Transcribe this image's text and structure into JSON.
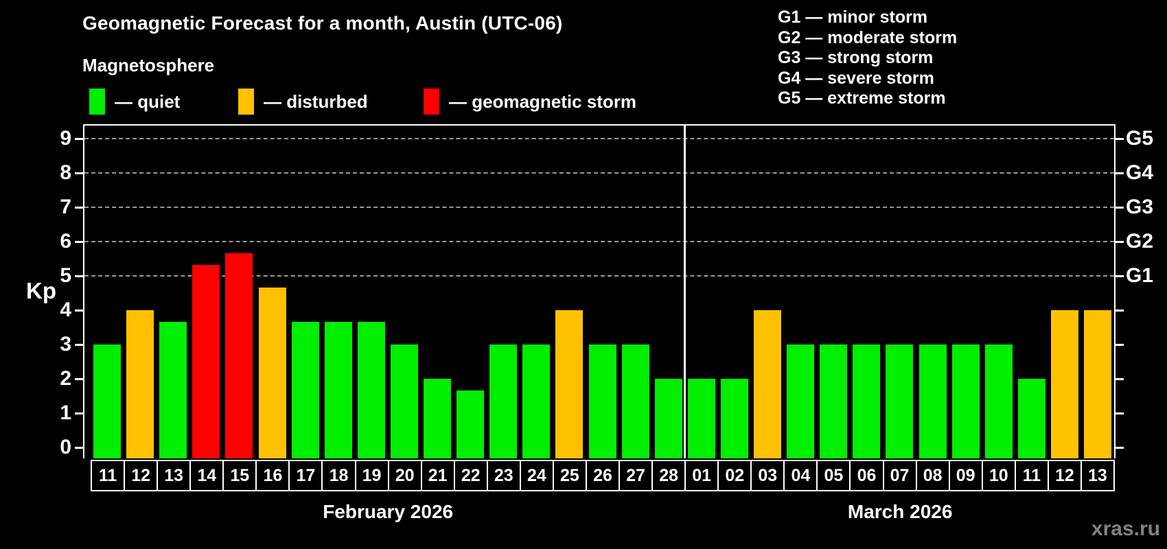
{
  "title": "Geomagnetic Forecast for a month, Austin (UTC-06)",
  "subtitle": "Magnetosphere",
  "legend": {
    "items": [
      {
        "key": "quiet",
        "label": "— quiet"
      },
      {
        "key": "disturbed",
        "label": "— disturbed"
      },
      {
        "key": "storm",
        "label": "— geomagnetic storm"
      }
    ]
  },
  "g_scale_legend": [
    "G1 — minor storm",
    "G2 — moderate storm",
    "G3 — strong storm",
    "G4 — severe storm",
    "G5 — extreme storm"
  ],
  "watermark": "xras.ru",
  "colors": {
    "quiet": "#00ee00",
    "disturbed": "#ffc100",
    "storm": "#ff0000",
    "gridline": "#9a9a9a",
    "axis": "#ffffff",
    "background": "#000000"
  },
  "chart_data": {
    "type": "bar",
    "title": "Geomagnetic Forecast for a month, Austin (UTC-06)",
    "ylabel": "Kp",
    "ylim": [
      0,
      9.4
    ],
    "yticks": [
      0,
      1,
      2,
      3,
      4,
      5,
      6,
      7,
      8,
      9
    ],
    "gridlines_kp": [
      5,
      6,
      7,
      8,
      9
    ],
    "grid": "dashed gray at storm levels only",
    "legend_position": "top",
    "right_axis_labels": [
      {
        "label": "G1",
        "kp": 5
      },
      {
        "label": "G2",
        "kp": 6
      },
      {
        "label": "G3",
        "kp": 7
      },
      {
        "label": "G4",
        "kp": 8
      },
      {
        "label": "G5",
        "kp": 9
      }
    ],
    "months": [
      {
        "label": "February 2026",
        "days": 18
      },
      {
        "label": "March 2026",
        "days": 13
      }
    ],
    "bars": [
      {
        "day": "11",
        "month": "February 2026",
        "kp": 3.0,
        "status": "quiet"
      },
      {
        "day": "12",
        "month": "February 2026",
        "kp": 4.0,
        "status": "disturbed"
      },
      {
        "day": "13",
        "month": "February 2026",
        "kp": 3.67,
        "status": "quiet"
      },
      {
        "day": "14",
        "month": "February 2026",
        "kp": 5.33,
        "status": "storm"
      },
      {
        "day": "15",
        "month": "February 2026",
        "kp": 5.67,
        "status": "storm"
      },
      {
        "day": "16",
        "month": "February 2026",
        "kp": 4.67,
        "status": "disturbed"
      },
      {
        "day": "17",
        "month": "February 2026",
        "kp": 3.67,
        "status": "quiet"
      },
      {
        "day": "18",
        "month": "February 2026",
        "kp": 3.67,
        "status": "quiet"
      },
      {
        "day": "19",
        "month": "February 2026",
        "kp": 3.67,
        "status": "quiet"
      },
      {
        "day": "20",
        "month": "February 2026",
        "kp": 3.0,
        "status": "quiet"
      },
      {
        "day": "21",
        "month": "February 2026",
        "kp": 2.0,
        "status": "quiet"
      },
      {
        "day": "22",
        "month": "February 2026",
        "kp": 1.67,
        "status": "quiet"
      },
      {
        "day": "23",
        "month": "February 2026",
        "kp": 3.0,
        "status": "quiet"
      },
      {
        "day": "24",
        "month": "February 2026",
        "kp": 3.0,
        "status": "quiet"
      },
      {
        "day": "25",
        "month": "February 2026",
        "kp": 4.0,
        "status": "disturbed"
      },
      {
        "day": "26",
        "month": "February 2026",
        "kp": 3.0,
        "status": "quiet"
      },
      {
        "day": "27",
        "month": "February 2026",
        "kp": 3.0,
        "status": "quiet"
      },
      {
        "day": "28",
        "month": "February 2026",
        "kp": 2.0,
        "status": "quiet"
      },
      {
        "day": "01",
        "month": "March 2026",
        "kp": 2.0,
        "status": "quiet"
      },
      {
        "day": "02",
        "month": "March 2026",
        "kp": 2.0,
        "status": "quiet"
      },
      {
        "day": "03",
        "month": "March 2026",
        "kp": 4.0,
        "status": "disturbed"
      },
      {
        "day": "04",
        "month": "March 2026",
        "kp": 3.0,
        "status": "quiet"
      },
      {
        "day": "05",
        "month": "March 2026",
        "kp": 3.0,
        "status": "quiet"
      },
      {
        "day": "06",
        "month": "March 2026",
        "kp": 3.0,
        "status": "quiet"
      },
      {
        "day": "07",
        "month": "March 2026",
        "kp": 3.0,
        "status": "quiet"
      },
      {
        "day": "08",
        "month": "March 2026",
        "kp": 3.0,
        "status": "quiet"
      },
      {
        "day": "09",
        "month": "March 2026",
        "kp": 3.0,
        "status": "quiet"
      },
      {
        "day": "10",
        "month": "March 2026",
        "kp": 3.0,
        "status": "quiet"
      },
      {
        "day": "11",
        "month": "March 2026",
        "kp": 2.0,
        "status": "quiet"
      },
      {
        "day": "12",
        "month": "March 2026",
        "kp": 4.0,
        "status": "disturbed"
      },
      {
        "day": "13",
        "month": "March 2026",
        "kp": 4.0,
        "status": "disturbed"
      }
    ]
  }
}
